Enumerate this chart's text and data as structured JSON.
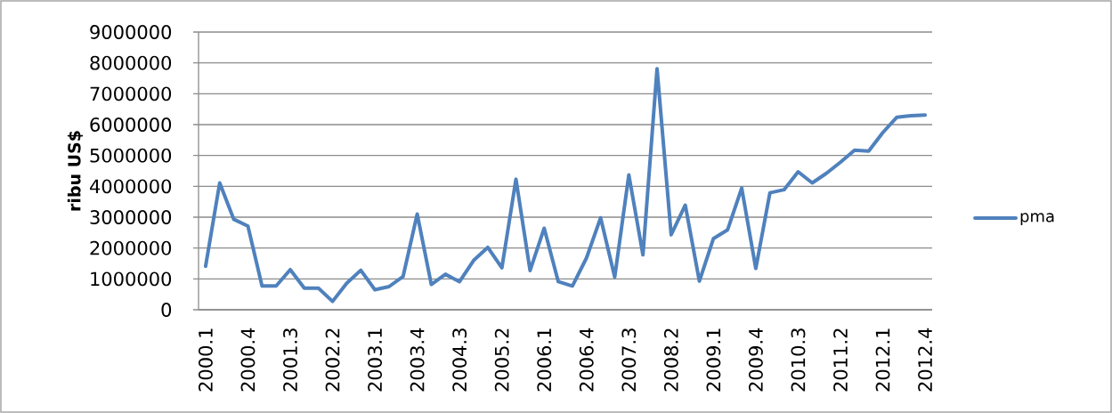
{
  "chart_data": {
    "type": "line",
    "ylabel": "ribu US$",
    "categories": [
      "2000.1",
      null,
      null,
      "2000.4",
      null,
      null,
      "2001.3",
      null,
      null,
      "2002.2",
      null,
      null,
      "2003.1",
      null,
      null,
      "2003.4",
      null,
      null,
      "2004.3",
      null,
      null,
      "2005.2",
      null,
      null,
      "2006.1",
      null,
      null,
      "2006.4",
      null,
      null,
      "2007.3",
      null,
      null,
      "2008.2",
      null,
      null,
      "2009.1",
      null,
      null,
      "2009.4",
      null,
      null,
      "2010.3",
      null,
      null,
      "2011.2",
      null,
      null,
      "2012.1",
      null,
      null,
      "2012.4"
    ],
    "series": [
      {
        "name": "pma",
        "color": "#4f81bd",
        "values": [
          1410000,
          4110000,
          2930000,
          2710000,
          770000,
          770000,
          1300000,
          700000,
          700000,
          270000,
          860000,
          1280000,
          650000,
          750000,
          1080000,
          3100000,
          820000,
          1150000,
          910000,
          1600000,
          2020000,
          1360000,
          4230000,
          1270000,
          2640000,
          910000,
          770000,
          1680000,
          2980000,
          1060000,
          4370000,
          1780000,
          7810000,
          2430000,
          3390000,
          930000,
          2310000,
          2590000,
          3940000,
          1340000,
          3790000,
          3890000,
          4470000,
          4110000,
          4420000,
          4780000,
          5170000,
          5140000,
          5740000,
          6240000,
          6290000,
          6310000
        ]
      }
    ],
    "ylim": [
      0,
      9000000
    ],
    "yticks": [
      0,
      1000000,
      2000000,
      3000000,
      4000000,
      5000000,
      6000000,
      7000000,
      8000000,
      9000000
    ],
    "grid": "y",
    "legend": "right"
  }
}
